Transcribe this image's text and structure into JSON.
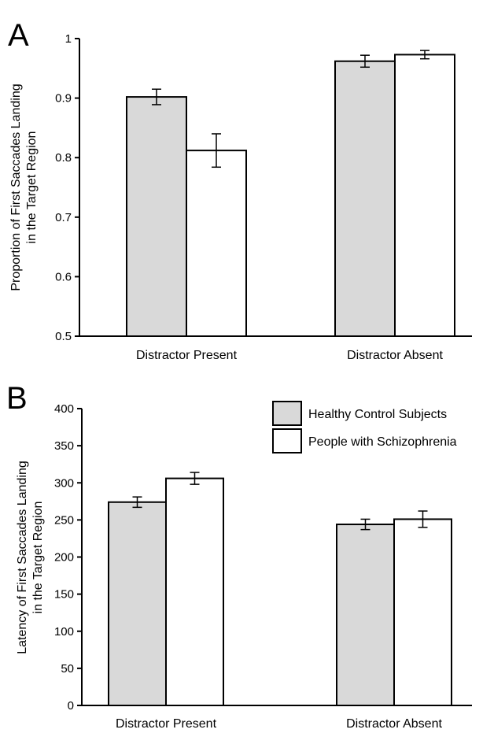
{
  "chart_data": [
    {
      "panel_label": "A",
      "type": "bar",
      "ylabel": [
        "Proportion of First Saccades Landing",
        "in the Target Region"
      ],
      "xlabel": "",
      "categories": [
        "Distractor Present",
        "Distractor Absent"
      ],
      "ylim": [
        0.5,
        1
      ],
      "yticks": [
        "0.5",
        "0.6",
        "0.7",
        "0.8",
        "0.9",
        "1"
      ],
      "series": [
        {
          "name": "Healthy Control Subjects",
          "color": "#d9d9d9",
          "values": [
            0.902,
            0.962
          ],
          "errors": [
            0.013,
            0.01
          ]
        },
        {
          "name": "People with Schizophrenia",
          "color": "#ffffff",
          "values": [
            0.812,
            0.973
          ],
          "errors": [
            0.028,
            0.007
          ]
        }
      ]
    },
    {
      "panel_label": "B",
      "type": "bar",
      "ylabel": [
        "Latency of First Saccades Landing",
        "in the Target Region"
      ],
      "xlabel": "",
      "categories": [
        "Distractor Present",
        "Distractor Absent"
      ],
      "ylim": [
        0,
        400
      ],
      "yticks": [
        "0",
        "50",
        "100",
        "150",
        "200",
        "250",
        "300",
        "350",
        "400"
      ],
      "legend_position": "top-right",
      "series": [
        {
          "name": "Healthy Control Subjects",
          "color": "#d9d9d9",
          "values": [
            274,
            244
          ],
          "errors": [
            7,
            7
          ]
        },
        {
          "name": "People with Schizophrenia",
          "color": "#ffffff",
          "values": [
            306,
            251
          ],
          "errors": [
            8,
            11
          ]
        }
      ]
    }
  ]
}
